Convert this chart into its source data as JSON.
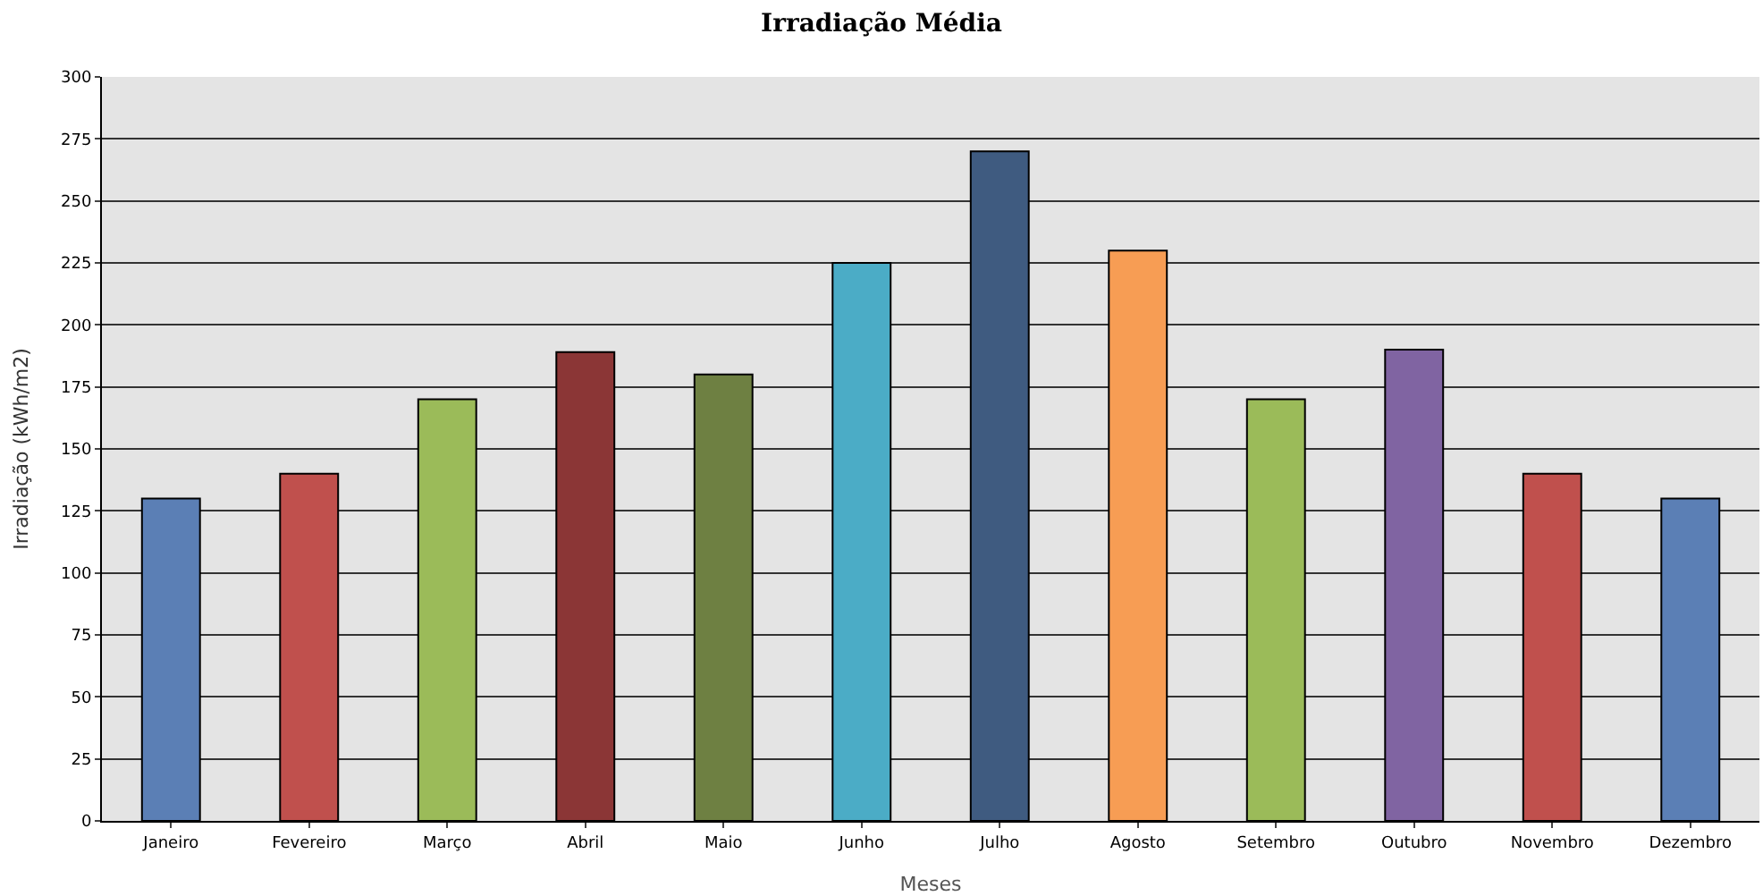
{
  "chart_data": {
    "type": "bar",
    "title": "Irradiação Média",
    "xlabel": "Meses",
    "ylabel": "Irradiação (kWh/m2)",
    "categories": [
      "Janeiro",
      "Fevereiro",
      "Março",
      "Abril",
      "Maio",
      "Junho",
      "Julho",
      "Agosto",
      "Setembro",
      "Outubro",
      "Novembro",
      "Dezembro"
    ],
    "values": [
      130,
      140,
      170,
      189,
      180,
      225,
      270,
      230,
      170,
      190,
      140,
      130
    ],
    "colors": [
      "#5b7fb5",
      "#c0504d",
      "#9bbb59",
      "#8b3636",
      "#6e8042",
      "#4bacc6",
      "#3f5b80",
      "#f79d54",
      "#9bbb59",
      "#8064a2",
      "#c0504d",
      "#5b7fb5"
    ],
    "ylim": [
      0,
      300
    ],
    "yticks": [
      0,
      25,
      50,
      75,
      100,
      125,
      150,
      175,
      200,
      225,
      250,
      275,
      300
    ],
    "grid": "y",
    "legend": false
  }
}
